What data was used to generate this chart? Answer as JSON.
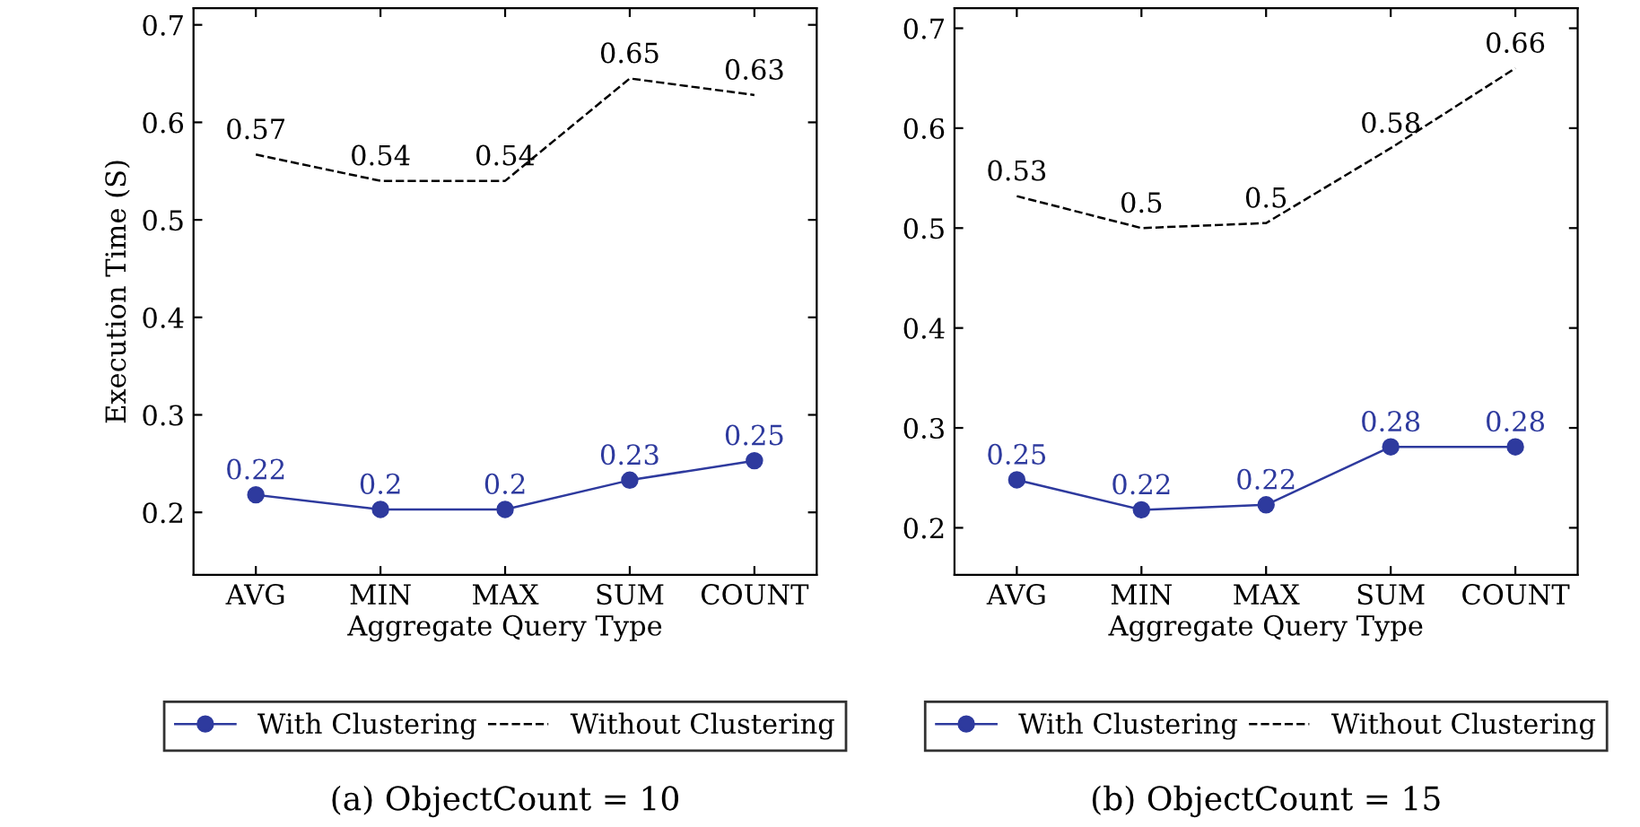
{
  "chart_data": [
    {
      "type": "line",
      "xlabel": "Aggregate Query Type",
      "ylabel": "Execution Time (S)",
      "categories": [
        "AVG",
        "MIN",
        "MAX",
        "SUM",
        "COUNT"
      ],
      "ylim": [
        0.136,
        0.717
      ],
      "yticks": [
        0.2,
        0.3,
        0.4,
        0.5,
        0.6,
        0.7
      ],
      "grid": false,
      "legend": "bottom",
      "annotations": [
        "(a) ObjectCount = 10"
      ],
      "series": [
        {
          "name": "With Clustering",
          "color": "#2e3a9e",
          "marker": "circle",
          "line_style": "solid",
          "values": [
            0.218,
            0.203,
            0.203,
            0.233,
            0.253
          ],
          "value_labels": [
            "0.22",
            "0.2",
            "0.2",
            "0.23",
            "0.25"
          ]
        },
        {
          "name": "Without Clustering",
          "color": "#000000",
          "marker": "none",
          "line_style": "dashed",
          "values": [
            0.567,
            0.54,
            0.54,
            0.645,
            0.628
          ],
          "value_labels": [
            "0.57",
            "0.54",
            "0.54",
            "0.65",
            "0.63"
          ]
        }
      ]
    },
    {
      "type": "line",
      "xlabel": "Aggregate Query Type",
      "categories": [
        "AVG",
        "MIN",
        "MAX",
        "SUM",
        "COUNT"
      ],
      "ylim": [
        0.153,
        0.72
      ],
      "yticks": [
        0.2,
        0.3,
        0.4,
        0.5,
        0.6,
        0.7
      ],
      "grid": false,
      "legend": "bottom",
      "annotations": [
        "(b) ObjectCount = 15"
      ],
      "series": [
        {
          "name": "With Clustering",
          "color": "#2e3a9e",
          "marker": "circle",
          "line_style": "solid",
          "values": [
            0.248,
            0.218,
            0.223,
            0.281,
            0.281
          ],
          "value_labels": [
            "0.25",
            "0.22",
            "0.22",
            "0.28",
            "0.28"
          ]
        },
        {
          "name": "Without Clustering",
          "color": "#000000",
          "marker": "none",
          "line_style": "dashed",
          "values": [
            0.532,
            0.5,
            0.505,
            0.58,
            0.66
          ],
          "value_labels": [
            "0.53",
            "0.5",
            "0.5",
            "0.58",
            "0.66"
          ]
        }
      ]
    }
  ]
}
